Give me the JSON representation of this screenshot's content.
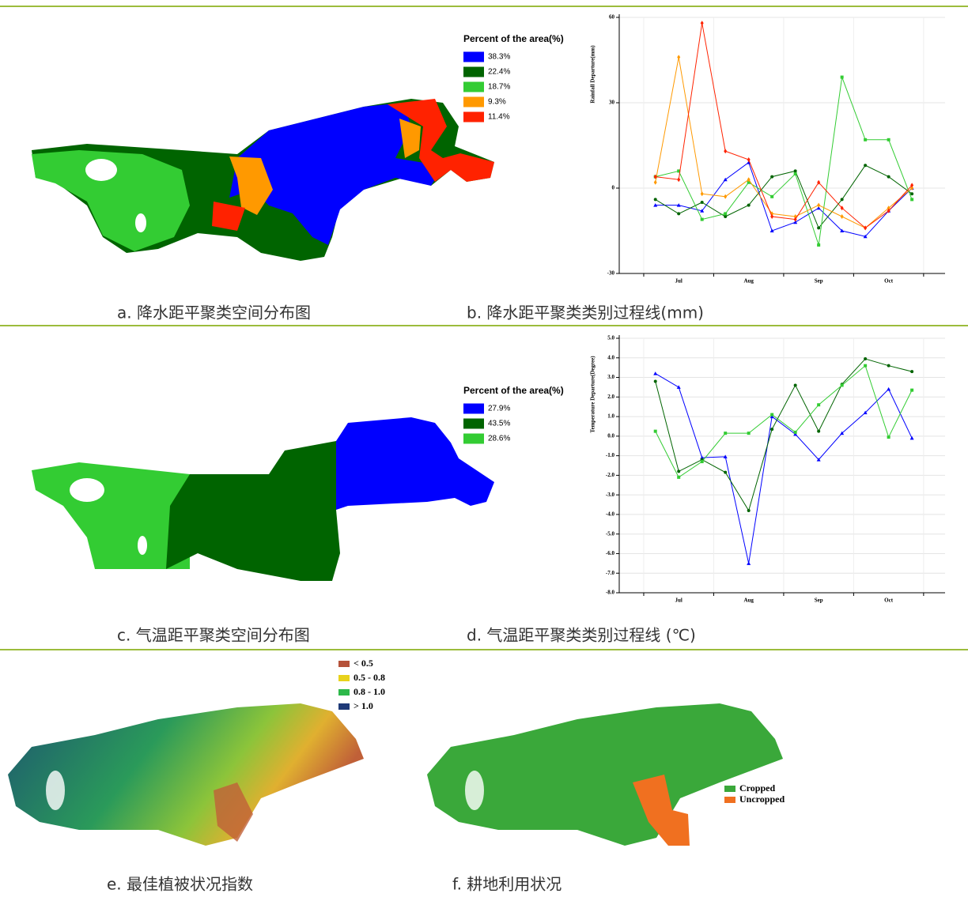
{
  "chart_data": [
    {
      "type": "line",
      "caption": "b. 降水距平聚类类别过程线(mm)",
      "y_label": "Rainfall Departure(mm)",
      "categories": [
        null,
        "Jul",
        null,
        null,
        "Aug",
        null,
        null,
        "Sep",
        null,
        null,
        "Oct",
        null
      ],
      "ylim": [
        -30,
        60
      ],
      "yticks": [
        -30,
        0,
        30,
        60
      ],
      "grid": true,
      "series": [
        {
          "color": "#0000ff",
          "values": [
            -6,
            -6,
            -8,
            3,
            9,
            -15,
            -12,
            -7,
            -15,
            -17,
            -8,
            0
          ]
        },
        {
          "color": "#006400",
          "values": [
            -4,
            -9,
            -5,
            -10,
            -6,
            4,
            6,
            -14,
            -4,
            8,
            4,
            -2
          ]
        },
        {
          "color": "#33cc33",
          "values": [
            4,
            6,
            -11,
            -9,
            2,
            -3,
            5,
            -20,
            39,
            17,
            17,
            -4
          ]
        },
        {
          "color": "#ff9900",
          "values": [
            2,
            46,
            -2,
            -3,
            3,
            -9,
            -10,
            -6,
            -10,
            -14,
            -7,
            0
          ]
        },
        {
          "color": "#ff2200",
          "values": [
            4,
            3,
            58,
            13,
            10,
            -10,
            -11,
            2,
            -7,
            -14,
            -8,
            1
          ]
        }
      ]
    },
    {
      "type": "line",
      "caption": "d. 气温距平聚类类别过程线 (℃)",
      "y_label": "Temperature Departure(Degree)",
      "categories": [
        null,
        "Jul",
        null,
        null,
        "Aug",
        null,
        null,
        "Sep",
        null,
        null,
        "Oct",
        null
      ],
      "ylim": [
        -8,
        5
      ],
      "yticks": [
        {
          "value": -8,
          "label": "-8.0"
        },
        {
          "value": -7,
          "label": "-7.0"
        },
        {
          "value": -6,
          "label": "-6.0"
        },
        {
          "value": -5,
          "label": "-5.0"
        },
        {
          "value": -4,
          "label": "-4.0"
        },
        {
          "value": -3,
          "label": "-3.0"
        },
        {
          "value": -2,
          "label": "-2.0"
        },
        {
          "value": -1,
          "label": "-1.0"
        },
        {
          "value": 0,
          "label": "0.0"
        },
        {
          "value": 1,
          "label": "1.0"
        },
        {
          "value": 2,
          "label": "2.0"
        },
        {
          "value": 3,
          "label": "3.0"
        },
        {
          "value": 4,
          "label": "4.0"
        },
        {
          "value": 5,
          "label": "5.0"
        }
      ],
      "grid": true,
      "series": [
        {
          "color": "#0000ff",
          "values": [
            3.2,
            2.5,
            -1.1,
            -1.05,
            -6.5,
            1.0,
            0.1,
            -1.2,
            0.15,
            1.2,
            2.4,
            -0.1
          ]
        },
        {
          "color": "#006400",
          "values": [
            2.8,
            -1.8,
            -1.2,
            -1.85,
            -3.8,
            0.35,
            2.6,
            0.25,
            2.65,
            3.95,
            3.6,
            3.3
          ]
        },
        {
          "color": "#33cc33",
          "values": [
            0.25,
            -2.1,
            -1.3,
            0.15,
            0.15,
            1.1,
            0.2,
            1.6,
            2.6,
            3.6,
            -0.05,
            2.35
          ]
        }
      ]
    }
  ],
  "maps": {
    "a": {
      "caption": "a. 降水距平聚类空间分布图",
      "legend_title": "Percent of the area(%)",
      "legend": [
        {
          "label": "38.3%",
          "color": "#0000ff"
        },
        {
          "label": "22.4%",
          "color": "#006400"
        },
        {
          "label": "18.7%",
          "color": "#33cc33"
        },
        {
          "label": "9.3%",
          "color": "#ff9900"
        },
        {
          "label": "11.4%",
          "color": "#ff2200"
        }
      ]
    },
    "c": {
      "caption": "c. 气温距平聚类空间分布图",
      "legend_title": "Percent of the area(%)",
      "legend": [
        {
          "label": "27.9%",
          "color": "#0000ff"
        },
        {
          "label": "43.5%",
          "color": "#006400"
        },
        {
          "label": "28.6%",
          "color": "#33cc33"
        }
      ]
    },
    "e": {
      "caption": "e. 最佳植被状况指数",
      "legend": [
        {
          "label": "< 0.5",
          "color": "#b5523a"
        },
        {
          "label": "0.5 - 0.8",
          "color": "#e8d21c"
        },
        {
          "label": "0.8 - 1.0",
          "color": "#2db84a"
        },
        {
          "label": "> 1.0",
          "color": "#1f3a78"
        }
      ]
    },
    "f": {
      "caption": "f. 耕地利用状况",
      "legend": [
        {
          "label": "Cropped",
          "color": "#3aa83a"
        },
        {
          "label": "Uncropped",
          "color": "#f07020"
        }
      ]
    }
  }
}
